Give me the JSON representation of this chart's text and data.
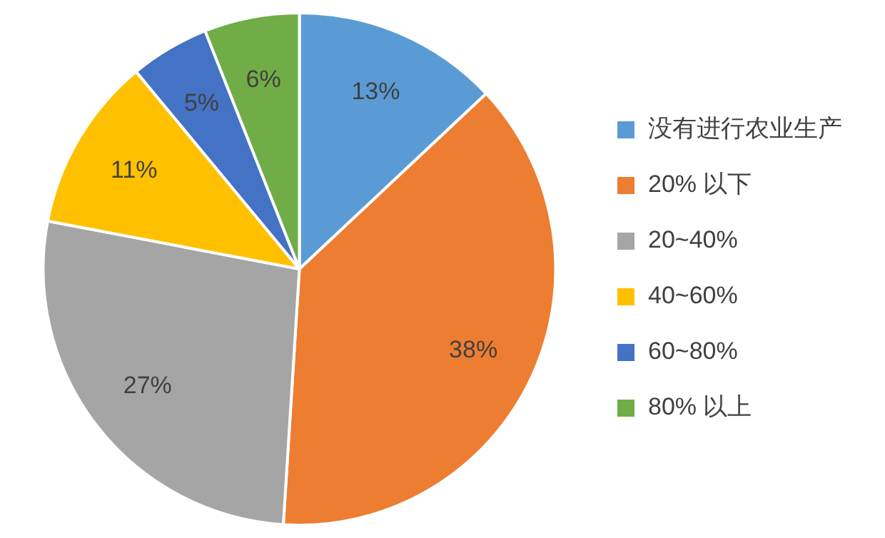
{
  "chart_data": {
    "type": "pie",
    "categories": [
      "没有进行农业生产",
      "20% 以下",
      "20~40%",
      "40~60%",
      "60~80%",
      "80% 以上"
    ],
    "values": [
      13,
      38,
      27,
      11,
      5,
      6
    ],
    "colors": [
      "#5b9bd5",
      "#ed7d31",
      "#a5a5a5",
      "#ffc000",
      "#4472c4",
      "#70ad47"
    ],
    "value_labels": [
      "13%",
      "38%",
      "27%",
      "11%",
      "5%",
      "6%"
    ],
    "legend": "right"
  }
}
